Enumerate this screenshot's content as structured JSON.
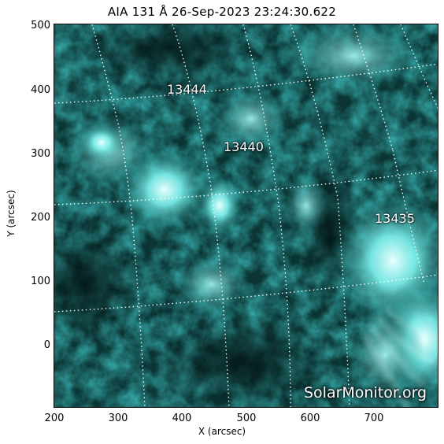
{
  "title": "AIA 131 Å 26-Sep-2023 23:24:30.622",
  "y_axis": {
    "label": "Y (arcsec)",
    "ticks": [
      "500",
      "400",
      "300",
      "200",
      "100",
      "0"
    ]
  },
  "x_axis": {
    "label": "X (arcsec)",
    "ticks": [
      "200",
      "300",
      "400",
      "500",
      "600",
      "700"
    ]
  },
  "active_regions": [
    "13444",
    "13440",
    "13435"
  ],
  "watermark": "SolarMonitor.org",
  "colors": {
    "image_dark": "#06201f",
    "image_mid": "#1aa6a4",
    "image_bright": "#bff8f6",
    "grid": "#ffffff"
  }
}
